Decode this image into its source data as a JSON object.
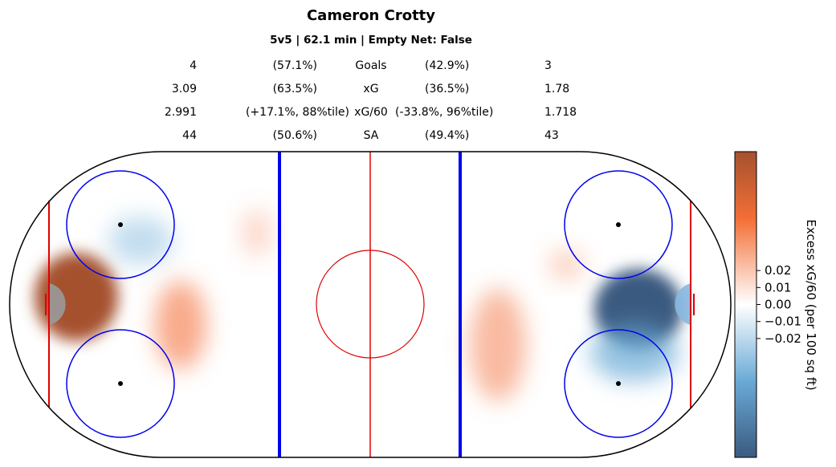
{
  "header": {
    "title": "Cameron Crotty",
    "subtitle": "5v5 | 62.1 min | Empty Net: False"
  },
  "stats_table": {
    "rows": [
      {
        "metric": "Goals",
        "left_value": "4",
        "left_pct": "(57.1%)",
        "right_pct": "(42.9%)",
        "right_value": "3"
      },
      {
        "metric": "xG",
        "left_value": "3.09",
        "left_pct": "(63.5%)",
        "right_pct": "(36.5%)",
        "right_value": "1.78"
      },
      {
        "metric": "xG/60",
        "left_value": "2.991",
        "left_pct": "(+17.1%, 88%tile)",
        "right_pct": "(-33.8%, 96%tile)",
        "right_value": "1.718"
      },
      {
        "metric": "SA",
        "left_value": "44",
        "left_pct": "(50.6%)",
        "right_pct": "(49.4%)",
        "right_value": "43"
      }
    ]
  },
  "chart_data": {
    "type": "heatmap",
    "title": "Cameron Crotty",
    "subtitle": "5v5 | 62.1 min | Empty Net: False",
    "colorbar": {
      "label": "Excess xG/60 (per 100 sq ft)",
      "ticks": [
        "0.02",
        "0.01",
        "0.00",
        "−0.01",
        "−0.02"
      ],
      "tick_values": [
        0.02,
        0.01,
        0.0,
        -0.01,
        -0.02
      ],
      "colors": {
        "positive": "#a5512f",
        "mid_positive": "#f36f36",
        "neutral": "#ffffff",
        "mid_negative": "#6aaad6",
        "negative": "#3b5a80"
      }
    },
    "hotspots": [
      {
        "zone": "left",
        "sign": "positive",
        "description": "net front / slot",
        "intensity": 1.0
      },
      {
        "zone": "left",
        "sign": "positive",
        "description": "high slot near blue line",
        "intensity": 0.45
      },
      {
        "zone": "left",
        "sign": "negative",
        "description": "faceoff circles",
        "intensity": 0.2
      },
      {
        "zone": "right",
        "sign": "negative",
        "description": "slot / crease",
        "intensity": 1.0
      },
      {
        "zone": "right",
        "sign": "negative",
        "description": "between circles",
        "intensity": 0.6
      },
      {
        "zone": "right",
        "sign": "positive",
        "description": "point area",
        "intensity": 0.3
      }
    ],
    "rink_colors": {
      "boards": "#000000",
      "center_line": "#e00000",
      "blue_line": "#0000ee",
      "goal_line": "#e00000",
      "circles": "#0000ee",
      "crease": "#9a9a9a"
    }
  }
}
